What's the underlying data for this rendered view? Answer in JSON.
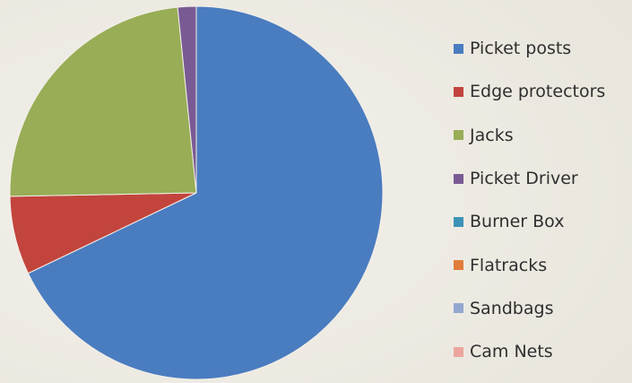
{
  "chart_data": {
    "type": "pie",
    "title": "",
    "categories": [
      "Picket posts",
      "Edge protectors",
      "Jacks",
      "Picket Driver",
      "Burner Box",
      "Flatracks",
      "Sandbags",
      "Cam Nets"
    ],
    "values": [
      67.9,
      6.8,
      23.7,
      1.6,
      0,
      0,
      0,
      0
    ],
    "unit": "percent (estimated share of pie)",
    "colors": [
      "#4a7cc0",
      "#c2443d",
      "#98ad56",
      "#7a5a94",
      "#3d93b7",
      "#e07d3a",
      "#93a7cf",
      "#eca59c"
    ],
    "legend_position": "right",
    "start_angle_deg": 0,
    "direction": "clockwise"
  }
}
